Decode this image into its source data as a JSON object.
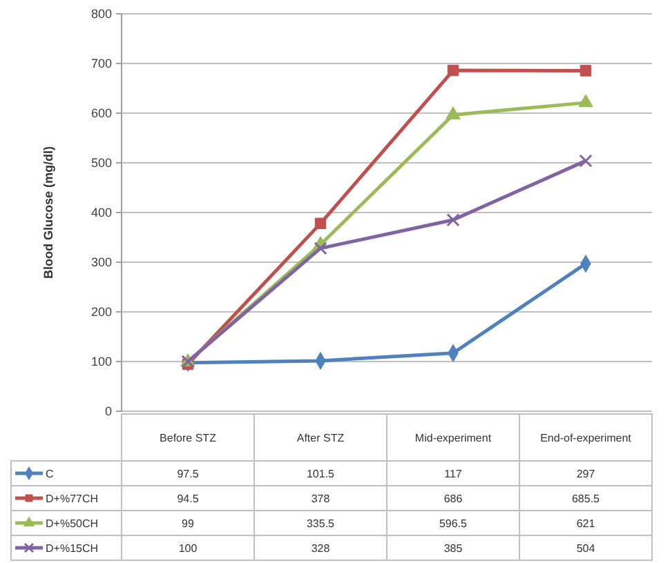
{
  "chart_data": {
    "type": "line",
    "ylabel": "Blood Glucose (mg/dl)",
    "categories": [
      "Before STZ",
      "After STZ",
      "Mid-experiment",
      "End-of-experiment"
    ],
    "series": [
      {
        "name": "C",
        "color": "#4f81bd",
        "marker": "diamond",
        "values": [
          97.5,
          101.5,
          117,
          297
        ]
      },
      {
        "name": "D+%77CH",
        "color": "#c0504d",
        "marker": "square",
        "values": [
          94.5,
          378,
          686,
          685.5
        ]
      },
      {
        "name": "D+%50CH",
        "color": "#9bbb59",
        "marker": "triangle",
        "values": [
          99,
          335.5,
          596.5,
          621
        ]
      },
      {
        "name": "D+%15CH",
        "color": "#8064a2",
        "marker": "cross",
        "values": [
          100,
          328,
          385,
          504
        ]
      }
    ],
    "ylim": [
      0,
      800
    ],
    "yticks": [
      0,
      100,
      200,
      300,
      400,
      500,
      600,
      700,
      800
    ],
    "grid": "y",
    "legend": "bottom",
    "data_labels": true
  }
}
